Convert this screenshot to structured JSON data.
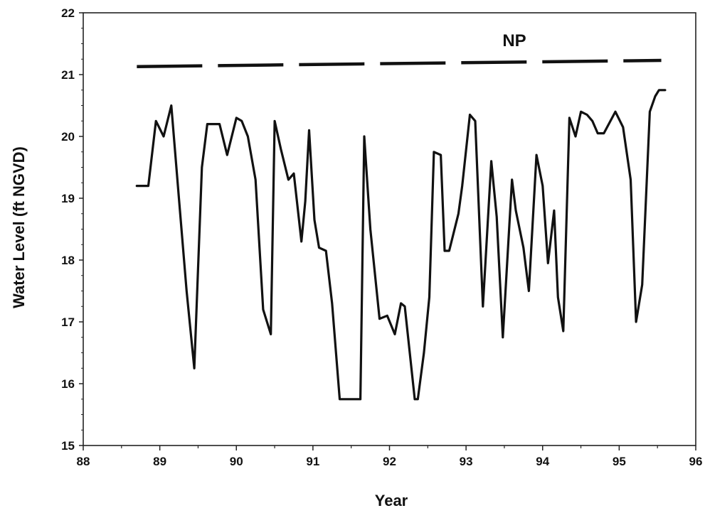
{
  "chart_data": {
    "type": "line",
    "xlabel": "Year",
    "ylabel": "Water Level (ft NGVD)",
    "xlim": [
      88,
      96
    ],
    "ylim": [
      15,
      22
    ],
    "x_ticks": [
      "88",
      "89",
      "90",
      "91",
      "92",
      "93",
      "94",
      "95",
      "96"
    ],
    "y_ticks": [
      "15",
      "16",
      "17",
      "18",
      "19",
      "20",
      "21",
      "22"
    ],
    "grid": false,
    "legend": "none",
    "annotation": "NP",
    "reference_line": {
      "style": "dashed",
      "x": [
        88.7,
        95.55
      ],
      "y": [
        21.13,
        21.23
      ]
    },
    "series": [
      {
        "x": [
          88.7,
          88.85,
          88.95,
          89.05,
          89.15,
          89.25,
          89.35,
          89.45,
          89.55,
          89.62,
          89.78,
          89.88,
          90.0,
          90.07,
          90.15,
          90.25,
          90.35,
          90.45,
          90.5,
          90.58,
          90.68,
          90.75,
          90.85,
          90.9,
          90.95,
          91.02,
          91.08,
          91.17,
          91.25,
          91.35,
          91.45,
          91.62,
          91.67,
          91.75,
          91.87,
          91.97,
          92.07,
          92.15,
          92.2,
          92.33,
          92.37,
          92.45,
          92.52,
          92.58,
          92.67,
          92.72,
          92.78,
          92.9,
          92.95,
          93.05,
          93.12,
          93.22,
          93.33,
          93.4,
          93.48,
          93.6,
          93.65,
          93.75,
          93.82,
          93.92,
          94.0,
          94.07,
          94.15,
          94.2,
          94.27,
          94.35,
          94.43,
          94.5,
          94.58,
          94.65,
          94.72,
          94.8,
          94.95,
          95.05,
          95.15,
          95.22,
          95.3,
          95.4,
          95.47,
          95.52,
          95.6
        ],
        "y": [
          19.2,
          19.2,
          20.25,
          20.0,
          20.5,
          19.0,
          17.5,
          16.25,
          19.5,
          20.2,
          20.2,
          19.7,
          20.3,
          20.25,
          20.0,
          19.3,
          17.2,
          16.8,
          20.25,
          19.8,
          19.3,
          19.4,
          18.3,
          18.95,
          20.1,
          18.65,
          18.2,
          18.15,
          17.3,
          15.75,
          15.75,
          15.75,
          20.0,
          18.5,
          17.05,
          17.1,
          16.8,
          17.3,
          17.25,
          15.75,
          15.75,
          16.5,
          17.4,
          19.75,
          19.7,
          18.15,
          18.15,
          18.75,
          19.2,
          20.35,
          20.25,
          17.25,
          19.6,
          18.7,
          16.75,
          19.3,
          18.8,
          18.2,
          17.5,
          19.7,
          19.2,
          17.95,
          18.8,
          17.4,
          16.85,
          20.3,
          20.0,
          20.4,
          20.35,
          20.25,
          20.05,
          20.05,
          20.4,
          20.15,
          19.3,
          17.0,
          17.6,
          20.4,
          20.65,
          20.75,
          20.75
        ]
      }
    ]
  }
}
